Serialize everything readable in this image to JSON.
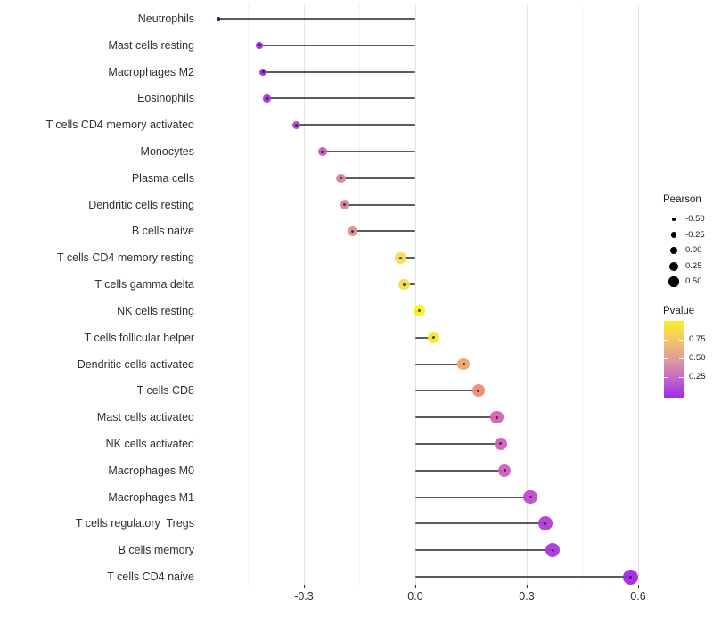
{
  "chart_data": {
    "type": "lollipop",
    "orientation": "horizontal",
    "title": "",
    "xlabel": "",
    "ylabel": "",
    "grid": "vertical-only",
    "baseline": 0,
    "xlim": [
      -0.575,
      0.635
    ],
    "x_ticks": [
      -0.3,
      0.0,
      0.3,
      0.6
    ],
    "x_tick_labels": [
      "-0.3",
      "0.0",
      "0.3",
      "0.6"
    ],
    "x_minor_ticks": [
      -0.45,
      -0.15,
      0.15,
      0.45
    ],
    "points": [
      {
        "label": "Neutrophils",
        "pearson": -0.53,
        "pvalue": 0.01,
        "color": "#6A0FA8",
        "size": 4.5
      },
      {
        "label": "Mast cells resting",
        "pearson": -0.42,
        "pvalue": 0.04,
        "color": "#9A2EE1",
        "size": 7.5
      },
      {
        "label": "Macrophages M2",
        "pearson": -0.41,
        "pvalue": 0.05,
        "color": "#9D33DC",
        "size": 8
      },
      {
        "label": "Eosinophils",
        "pearson": -0.4,
        "pvalue": 0.07,
        "color": "#A33BD2",
        "size": 8.5
      },
      {
        "label": "T cells CD4 memory activated",
        "pearson": -0.32,
        "pvalue": 0.13,
        "color": "#AC47CD",
        "size": 9
      },
      {
        "label": "Monocytes",
        "pearson": -0.25,
        "pvalue": 0.26,
        "color": "#C658C1",
        "size": 10.5
      },
      {
        "label": "Plasma cells",
        "pearson": -0.2,
        "pvalue": 0.4,
        "color": "#DB80A6",
        "size": 10.5
      },
      {
        "label": "Dendritic cells resting",
        "pearson": -0.19,
        "pvalue": 0.41,
        "color": "#DB82A1",
        "size": 10.5
      },
      {
        "label": "B cells naive",
        "pearson": -0.17,
        "pvalue": 0.47,
        "color": "#E28E92",
        "size": 11
      },
      {
        "label": "T cells CD4 memory resting",
        "pearson": -0.04,
        "pvalue": 0.84,
        "color": "#F6DC4D",
        "size": 12.5
      },
      {
        "label": "T cells gamma delta",
        "pearson": -0.03,
        "pvalue": 0.85,
        "color": "#F6DD4A",
        "size": 12.5
      },
      {
        "label": "NK cells resting",
        "pearson": 0.01,
        "pvalue": 0.96,
        "color": "#F8F219",
        "size": 13
      },
      {
        "label": "T cells follicular helper",
        "pearson": 0.05,
        "pvalue": 0.88,
        "color": "#F7E63A",
        "size": 13
      },
      {
        "label": "Dendritic cells activated",
        "pearson": 0.13,
        "pvalue": 0.62,
        "color": "#F0A767",
        "size": 13.5
      },
      {
        "label": "T cells CD8",
        "pearson": 0.17,
        "pvalue": 0.51,
        "color": "#EA8C73",
        "size": 14
      },
      {
        "label": "Mast cells activated",
        "pearson": 0.22,
        "pvalue": 0.33,
        "color": "#D563B5",
        "size": 14.5
      },
      {
        "label": "NK cells activated",
        "pearson": 0.23,
        "pvalue": 0.3,
        "color": "#D160BA",
        "size": 14.5
      },
      {
        "label": "Macrophages M0",
        "pearson": 0.24,
        "pvalue": 0.29,
        "color": "#D15FBC",
        "size": 14.5
      },
      {
        "label": "Macrophages M1",
        "pearson": 0.31,
        "pvalue": 0.19,
        "color": "#BC4BCB",
        "size": 15.5
      },
      {
        "label": "T cells regulatory  Tregs",
        "pearson": 0.35,
        "pvalue": 0.14,
        "color": "#B23ED3",
        "size": 16
      },
      {
        "label": "B cells memory",
        "pearson": 0.37,
        "pvalue": 0.11,
        "color": "#AC37D8",
        "size": 16
      },
      {
        "label": "T cells CD4 naive",
        "pearson": 0.58,
        "pvalue": 0.02,
        "color": "#A228E0",
        "size": 17
      }
    ],
    "legend_pearson": {
      "title": "Pearson",
      "items": [
        {
          "label": "-0.50",
          "size": 3.5
        },
        {
          "label": "-0.25",
          "size": 6.5
        },
        {
          "label": "0.00",
          "size": 8.5
        },
        {
          "label": "0.25",
          "size": 10
        },
        {
          "label": "0.50",
          "size": 11.5
        }
      ]
    },
    "legend_pvalue": {
      "title": "Pvalue",
      "tick_labels": [
        "0.75",
        "0.50",
        "0.25"
      ],
      "range": [
        0,
        1
      ],
      "gradient_stops": [
        {
          "pos": 0,
          "color": "#9C28E9"
        },
        {
          "pos": 25,
          "color": "#C364C9"
        },
        {
          "pos": 50,
          "color": "#E19B9B"
        },
        {
          "pos": 75,
          "color": "#F2C46A"
        },
        {
          "pos": 100,
          "color": "#F8F126"
        }
      ]
    }
  }
}
